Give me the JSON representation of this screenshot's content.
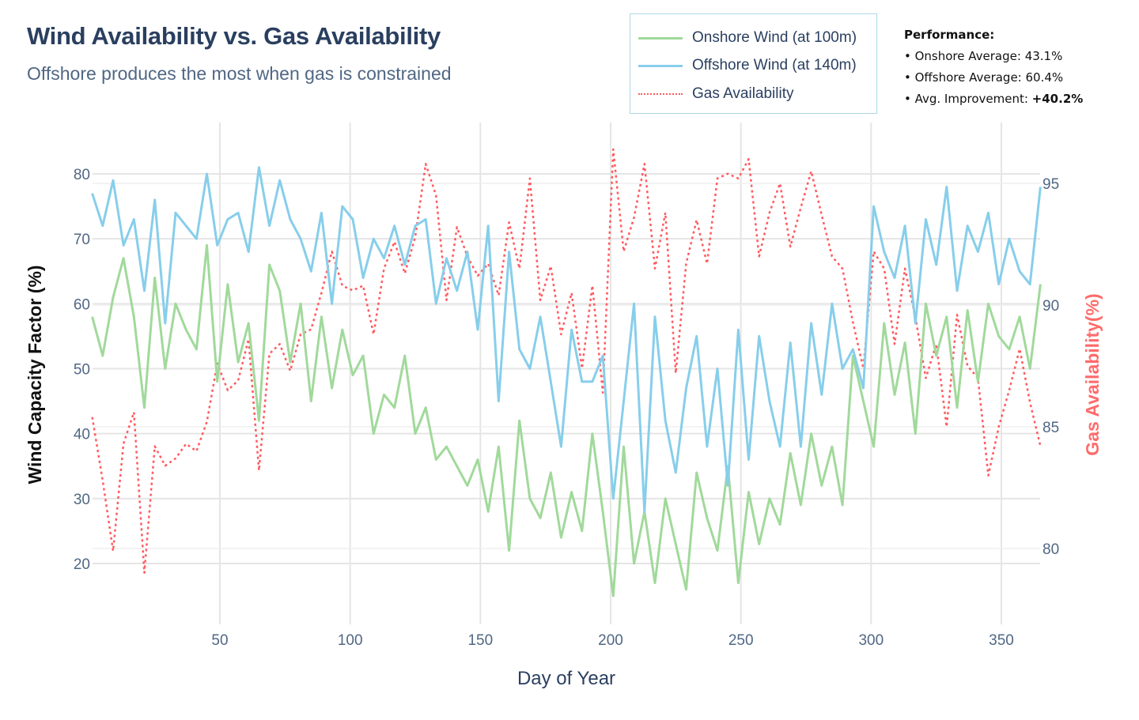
{
  "header": {
    "title": "Wind Availability vs. Gas Availability",
    "subtitle": "Offshore produces the most when gas is constrained"
  },
  "legend": {
    "items": [
      {
        "label": "Onshore Wind (at 100m)",
        "color": "#a1d99b",
        "dash": "solid"
      },
      {
        "label": "Offshore Wind (at 140m)",
        "color": "#87ceeb",
        "dash": "solid"
      },
      {
        "label": "Gas Availability",
        "color": "#ff5a5f",
        "dash": "dot"
      }
    ]
  },
  "performance": {
    "heading": "Performance:",
    "lines": [
      {
        "label": "• Onshore Average: ",
        "value": "43.1%"
      },
      {
        "label": "• Offshore Average: ",
        "value": "60.4%"
      },
      {
        "label": "• Avg. Improvement: ",
        "value": "+40.2%"
      }
    ]
  },
  "chart_data": {
    "type": "line",
    "title": "Wind Availability vs. Gas Availability",
    "subtitle": "Offshore produces the most when gas is constrained",
    "xlabel": "Day of Year",
    "ylabel": "Wind Capacity Factor (%)",
    "y2label": "Gas Availability(%)",
    "xlim": [
      1,
      365
    ],
    "ylim": [
      11,
      86
    ],
    "y2lim": [
      78.2,
      96.6
    ],
    "xticks": [
      50,
      100,
      150,
      200,
      250,
      300,
      350
    ],
    "yticks": [
      20,
      30,
      40,
      50,
      60,
      70,
      80
    ],
    "y2ticks": [
      80,
      85,
      90,
      95
    ],
    "grid": true,
    "legend_position": "top-right",
    "x": [
      1,
      5,
      9,
      13,
      17,
      21,
      25,
      29,
      33,
      37,
      41,
      45,
      49,
      53,
      57,
      61,
      65,
      69,
      73,
      77,
      81,
      85,
      89,
      93,
      97,
      101,
      105,
      109,
      113,
      117,
      121,
      125,
      129,
      133,
      137,
      141,
      145,
      149,
      153,
      157,
      161,
      165,
      169,
      173,
      177,
      181,
      185,
      189,
      193,
      197,
      201,
      205,
      209,
      213,
      217,
      221,
      225,
      229,
      233,
      237,
      241,
      245,
      249,
      253,
      257,
      261,
      265,
      269,
      273,
      277,
      281,
      285,
      289,
      293,
      297,
      301,
      305,
      309,
      313,
      317,
      321,
      325,
      329,
      333,
      337,
      341,
      345,
      349,
      353,
      357,
      361,
      365
    ],
    "series": [
      {
        "name": "Onshore Wind (at 100m)",
        "axis": "left",
        "color": "#a1d99b",
        "values": [
          58,
          52,
          61,
          67,
          58,
          44,
          64,
          50,
          60,
          56,
          53,
          69,
          48,
          63,
          51,
          57,
          42,
          66,
          62,
          51,
          60,
          45,
          58,
          47,
          56,
          49,
          52,
          40,
          46,
          44,
          52,
          40,
          44,
          36,
          38,
          35,
          32,
          36,
          28,
          38,
          22,
          42,
          30,
          27,
          34,
          24,
          31,
          25,
          40,
          28,
          15,
          38,
          20,
          28,
          17,
          30,
          23,
          16,
          34,
          27,
          22,
          35,
          17,
          31,
          23,
          30,
          26,
          37,
          29,
          40,
          32,
          38,
          29,
          52,
          45,
          38,
          57,
          46,
          54,
          40,
          60,
          52,
          58,
          44,
          59,
          48,
          60,
          55,
          53,
          58,
          50,
          63
        ]
      },
      {
        "name": "Offshore Wind (at 140m)",
        "axis": "left",
        "color": "#87ceeb",
        "values": [
          77,
          72,
          79,
          69,
          73,
          62,
          76,
          57,
          74,
          72,
          70,
          80,
          69,
          73,
          74,
          68,
          81,
          72,
          79,
          73,
          70,
          65,
          74,
          60,
          75,
          73,
          64,
          70,
          67,
          72,
          66,
          72,
          73,
          60,
          67,
          62,
          68,
          56,
          72,
          45,
          68,
          53,
          50,
          58,
          48,
          38,
          56,
          48,
          48,
          52,
          30,
          45,
          60,
          28,
          58,
          42,
          34,
          47,
          55,
          38,
          50,
          32,
          56,
          36,
          55,
          45,
          38,
          54,
          38,
          57,
          46,
          60,
          50,
          53,
          47,
          75,
          68,
          64,
          72,
          57,
          73,
          66,
          78,
          62,
          72,
          68,
          74,
          63,
          70,
          65,
          63,
          78
        ]
      },
      {
        "name": "Gas Availability",
        "axis": "right",
        "color": "#ff5a5f",
        "values": [
          85.4,
          82.8,
          79.9,
          84.3,
          85.6,
          79.0,
          84.2,
          83.4,
          83.7,
          84.3,
          84.0,
          85.2,
          87.6,
          86.5,
          86.9,
          88.6,
          83.2,
          88.0,
          88.4,
          87.3,
          88.8,
          89.0,
          90.5,
          92.2,
          90.8,
          90.6,
          90.8,
          88.8,
          91.5,
          92.6,
          91.3,
          92.8,
          95.8,
          94.5,
          90.2,
          93.2,
          92.0,
          91.2,
          91.7,
          90.4,
          93.4,
          91.5,
          95.2,
          90.2,
          91.6,
          88.8,
          90.5,
          87.4,
          90.8,
          86.4,
          96.4,
          92.2,
          93.6,
          95.8,
          91.5,
          93.8,
          87.2,
          91.7,
          93.5,
          91.7,
          95.2,
          95.4,
          95.2,
          96.0,
          92.0,
          93.8,
          95.0,
          92.4,
          94.0,
          95.5,
          93.7,
          92.0,
          91.5,
          89.3,
          87.4,
          92.2,
          91.5,
          88.4,
          91.5,
          89.5,
          87.0,
          88.4,
          85.0,
          89.6,
          87.5,
          87.0,
          83.0,
          85.0,
          86.5,
          88.2,
          86.0,
          84.2
        ]
      }
    ]
  }
}
